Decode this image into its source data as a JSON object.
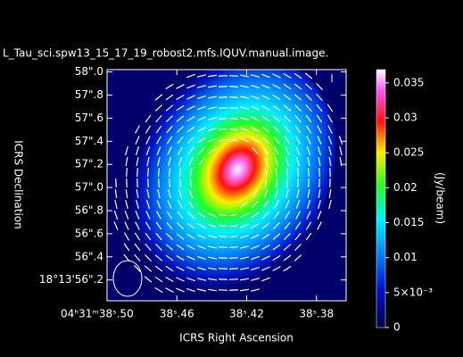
{
  "chart_data": {
    "type": "image",
    "title": "L_Tau_sci.spw13_15_17_19_robost2.mfs.IQUV.manual.image.",
    "xlabel": "ICRS Right Ascension",
    "ylabel": "ICRS Declination",
    "xlim": [
      38.5,
      38.363
    ],
    "xticks": [
      {
        "value": 38.5,
        "label": "04ʰ31ᵐ38ˢ.50"
      },
      {
        "value": 38.46,
        "label": "38ˢ.46"
      },
      {
        "value": 38.42,
        "label": "38ˢ.42"
      },
      {
        "value": 38.38,
        "label": "38ˢ.38"
      }
    ],
    "ylim": [
      56.02,
      58.02
    ],
    "yticks": [
      {
        "value": 58.0,
        "label": "58\".0"
      },
      {
        "value": 57.8,
        "label": "57\".8"
      },
      {
        "value": 57.6,
        "label": "57\".6"
      },
      {
        "value": 57.4,
        "label": "57\".4"
      },
      {
        "value": 57.2,
        "label": "57\".2"
      },
      {
        "value": 57.0,
        "label": "57\".0"
      },
      {
        "value": 56.8,
        "label": "56\".8"
      },
      {
        "value": 56.6,
        "label": "56\".6"
      },
      {
        "value": 56.4,
        "label": "56\".4"
      },
      {
        "value": 56.2,
        "label": "18°13'56\".2"
      }
    ],
    "colorbar_label": "(Jy/beam)",
    "clim": [
      0,
      0.0369
    ],
    "cticks": [
      0,
      {
        "value": 0.005,
        "label": "5×10⁻³"
      },
      0.01,
      0.015,
      0.02,
      0.025,
      0.03,
      0.035
    ]
  }
}
